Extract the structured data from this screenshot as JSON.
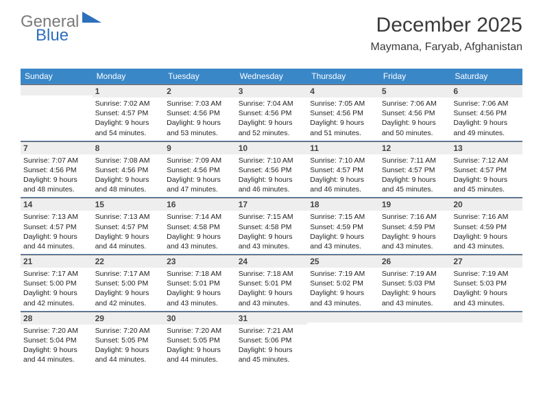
{
  "logo": {
    "word1": "General",
    "word2": "Blue"
  },
  "title": "December 2025",
  "location": "Maymana, Faryab, Afghanistan",
  "day_headers": [
    "Sunday",
    "Monday",
    "Tuesday",
    "Wednesday",
    "Thursday",
    "Friday",
    "Saturday"
  ],
  "header_bg": "#3a87c8",
  "weeks": [
    [
      {
        "day": "",
        "lines": []
      },
      {
        "day": "1",
        "lines": [
          "Sunrise: 7:02 AM",
          "Sunset: 4:57 PM",
          "Daylight: 9 hours and 54 minutes."
        ]
      },
      {
        "day": "2",
        "lines": [
          "Sunrise: 7:03 AM",
          "Sunset: 4:56 PM",
          "Daylight: 9 hours and 53 minutes."
        ]
      },
      {
        "day": "3",
        "lines": [
          "Sunrise: 7:04 AM",
          "Sunset: 4:56 PM",
          "Daylight: 9 hours and 52 minutes."
        ]
      },
      {
        "day": "4",
        "lines": [
          "Sunrise: 7:05 AM",
          "Sunset: 4:56 PM",
          "Daylight: 9 hours and 51 minutes."
        ]
      },
      {
        "day": "5",
        "lines": [
          "Sunrise: 7:06 AM",
          "Sunset: 4:56 PM",
          "Daylight: 9 hours and 50 minutes."
        ]
      },
      {
        "day": "6",
        "lines": [
          "Sunrise: 7:06 AM",
          "Sunset: 4:56 PM",
          "Daylight: 9 hours and 49 minutes."
        ]
      }
    ],
    [
      {
        "day": "7",
        "lines": [
          "Sunrise: 7:07 AM",
          "Sunset: 4:56 PM",
          "Daylight: 9 hours and 48 minutes."
        ]
      },
      {
        "day": "8",
        "lines": [
          "Sunrise: 7:08 AM",
          "Sunset: 4:56 PM",
          "Daylight: 9 hours and 48 minutes."
        ]
      },
      {
        "day": "9",
        "lines": [
          "Sunrise: 7:09 AM",
          "Sunset: 4:56 PM",
          "Daylight: 9 hours and 47 minutes."
        ]
      },
      {
        "day": "10",
        "lines": [
          "Sunrise: 7:10 AM",
          "Sunset: 4:56 PM",
          "Daylight: 9 hours and 46 minutes."
        ]
      },
      {
        "day": "11",
        "lines": [
          "Sunrise: 7:10 AM",
          "Sunset: 4:57 PM",
          "Daylight: 9 hours and 46 minutes."
        ]
      },
      {
        "day": "12",
        "lines": [
          "Sunrise: 7:11 AM",
          "Sunset: 4:57 PM",
          "Daylight: 9 hours and 45 minutes."
        ]
      },
      {
        "day": "13",
        "lines": [
          "Sunrise: 7:12 AM",
          "Sunset: 4:57 PM",
          "Daylight: 9 hours and 45 minutes."
        ]
      }
    ],
    [
      {
        "day": "14",
        "lines": [
          "Sunrise: 7:13 AM",
          "Sunset: 4:57 PM",
          "Daylight: 9 hours and 44 minutes."
        ]
      },
      {
        "day": "15",
        "lines": [
          "Sunrise: 7:13 AM",
          "Sunset: 4:57 PM",
          "Daylight: 9 hours and 44 minutes."
        ]
      },
      {
        "day": "16",
        "lines": [
          "Sunrise: 7:14 AM",
          "Sunset: 4:58 PM",
          "Daylight: 9 hours and 43 minutes."
        ]
      },
      {
        "day": "17",
        "lines": [
          "Sunrise: 7:15 AM",
          "Sunset: 4:58 PM",
          "Daylight: 9 hours and 43 minutes."
        ]
      },
      {
        "day": "18",
        "lines": [
          "Sunrise: 7:15 AM",
          "Sunset: 4:59 PM",
          "Daylight: 9 hours and 43 minutes."
        ]
      },
      {
        "day": "19",
        "lines": [
          "Sunrise: 7:16 AM",
          "Sunset: 4:59 PM",
          "Daylight: 9 hours and 43 minutes."
        ]
      },
      {
        "day": "20",
        "lines": [
          "Sunrise: 7:16 AM",
          "Sunset: 4:59 PM",
          "Daylight: 9 hours and 43 minutes."
        ]
      }
    ],
    [
      {
        "day": "21",
        "lines": [
          "Sunrise: 7:17 AM",
          "Sunset: 5:00 PM",
          "Daylight: 9 hours and 42 minutes."
        ]
      },
      {
        "day": "22",
        "lines": [
          "Sunrise: 7:17 AM",
          "Sunset: 5:00 PM",
          "Daylight: 9 hours and 42 minutes."
        ]
      },
      {
        "day": "23",
        "lines": [
          "Sunrise: 7:18 AM",
          "Sunset: 5:01 PM",
          "Daylight: 9 hours and 43 minutes."
        ]
      },
      {
        "day": "24",
        "lines": [
          "Sunrise: 7:18 AM",
          "Sunset: 5:01 PM",
          "Daylight: 9 hours and 43 minutes."
        ]
      },
      {
        "day": "25",
        "lines": [
          "Sunrise: 7:19 AM",
          "Sunset: 5:02 PM",
          "Daylight: 9 hours and 43 minutes."
        ]
      },
      {
        "day": "26",
        "lines": [
          "Sunrise: 7:19 AM",
          "Sunset: 5:03 PM",
          "Daylight: 9 hours and 43 minutes."
        ]
      },
      {
        "day": "27",
        "lines": [
          "Sunrise: 7:19 AM",
          "Sunset: 5:03 PM",
          "Daylight: 9 hours and 43 minutes."
        ]
      }
    ],
    [
      {
        "day": "28",
        "lines": [
          "Sunrise: 7:20 AM",
          "Sunset: 5:04 PM",
          "Daylight: 9 hours and 44 minutes."
        ]
      },
      {
        "day": "29",
        "lines": [
          "Sunrise: 7:20 AM",
          "Sunset: 5:05 PM",
          "Daylight: 9 hours and 44 minutes."
        ]
      },
      {
        "day": "30",
        "lines": [
          "Sunrise: 7:20 AM",
          "Sunset: 5:05 PM",
          "Daylight: 9 hours and 44 minutes."
        ]
      },
      {
        "day": "31",
        "lines": [
          "Sunrise: 7:21 AM",
          "Sunset: 5:06 PM",
          "Daylight: 9 hours and 45 minutes."
        ]
      },
      {
        "day": "",
        "lines": []
      },
      {
        "day": "",
        "lines": []
      },
      {
        "day": "",
        "lines": []
      }
    ]
  ]
}
